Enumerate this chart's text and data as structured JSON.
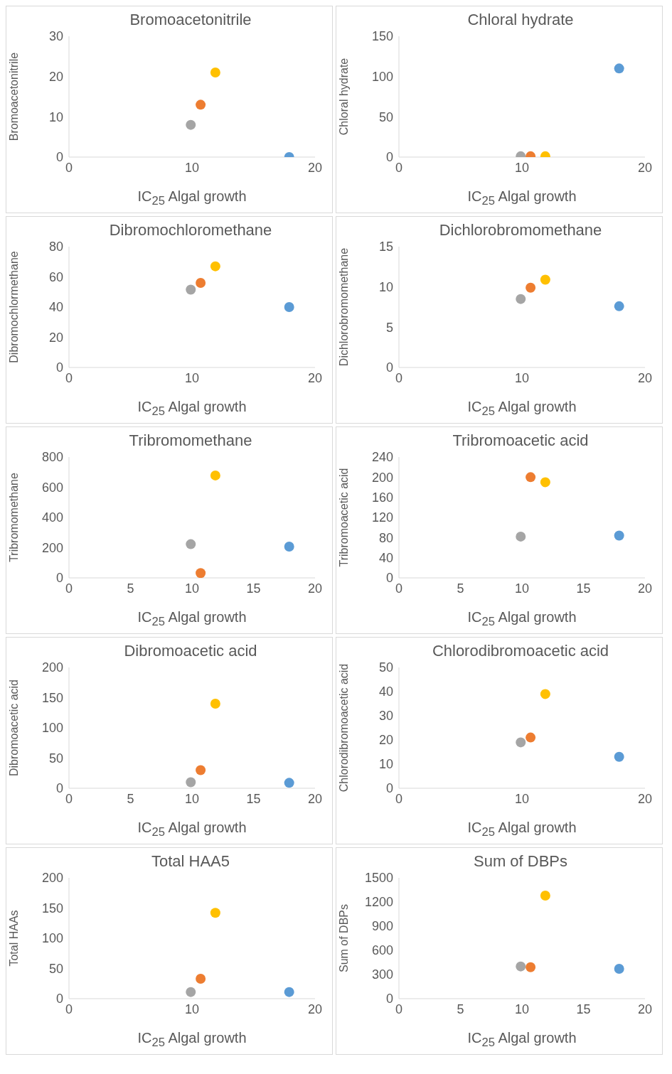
{
  "chart_data": [
    {
      "type": "scatter",
      "title": "Bromoacetonitrile",
      "xlabel": "IC$_{25}$ Algal growth",
      "ylabel": "Bromoacetonitrile",
      "x": [
        9.9,
        10.7,
        11.9,
        17.9
      ],
      "values": [
        8,
        13,
        21,
        0
      ],
      "colors": [
        "#a5a5a5",
        "#ed7d31",
        "#ffc000",
        "#5b9bd5"
      ],
      "xlim": [
        0,
        20
      ],
      "xticks": [
        0,
        10,
        20
      ],
      "ylim": [
        0,
        30
      ],
      "yticks": [
        0,
        10,
        20,
        30
      ],
      "marker": "circle"
    },
    {
      "type": "scatter",
      "title": "Chloral hydrate",
      "xlabel": "IC$_{25}$ Algal growth",
      "ylabel": "Chloral hydrate",
      "x": [
        9.9,
        10.7,
        11.9,
        17.9
      ],
      "values": [
        1,
        1,
        1,
        110
      ],
      "colors": [
        "#a5a5a5",
        "#ed7d31",
        "#ffc000",
        "#5b9bd5"
      ],
      "xlim": [
        0,
        20
      ],
      "xticks": [
        0,
        10,
        20
      ],
      "ylim": [
        0,
        150
      ],
      "yticks": [
        0,
        50,
        100,
        150
      ],
      "marker": "circle"
    },
    {
      "type": "scatter",
      "title": "Dibromochloromethane",
      "xlabel": "IC$_{25}$ Algal growth",
      "ylabel": "Dibromochlormethane",
      "x": [
        9.9,
        10.7,
        11.9,
        17.9
      ],
      "values": [
        51.5,
        56,
        67,
        40
      ],
      "colors": [
        "#a5a5a5",
        "#ed7d31",
        "#ffc000",
        "#5b9bd5"
      ],
      "xlim": [
        0,
        20
      ],
      "xticks": [
        0,
        10,
        20
      ],
      "ylim": [
        0,
        80
      ],
      "yticks": [
        0,
        20,
        40,
        60,
        80
      ],
      "marker": "circle"
    },
    {
      "type": "scatter",
      "title": "Dichlorobromomethane",
      "xlabel": "IC$_{25}$ Algal growth",
      "ylabel": "Dichlorobromomethane",
      "x": [
        9.9,
        10.7,
        11.9,
        17.9
      ],
      "values": [
        8.5,
        9.9,
        10.9,
        7.6
      ],
      "colors": [
        "#a5a5a5",
        "#ed7d31",
        "#ffc000",
        "#5b9bd5"
      ],
      "xlim": [
        0,
        20
      ],
      "xticks": [
        0,
        10,
        20
      ],
      "ylim": [
        0,
        15
      ],
      "yticks": [
        0,
        5,
        10,
        15
      ],
      "marker": "circle"
    },
    {
      "type": "scatter",
      "title": "Tribromomethane",
      "xlabel": "IC$_{25}$ Algal growth",
      "ylabel": "Tribromomethane",
      "x": [
        9.9,
        10.7,
        11.9,
        17.9
      ],
      "values": [
        223,
        32,
        678,
        207
      ],
      "colors": [
        "#a5a5a5",
        "#ed7d31",
        "#ffc000",
        "#5b9bd5"
      ],
      "xlim": [
        0,
        20
      ],
      "xticks": [
        0,
        5,
        10,
        15,
        20
      ],
      "ylim": [
        0,
        800
      ],
      "yticks": [
        0,
        200,
        400,
        600,
        800
      ],
      "marker": "circle"
    },
    {
      "type": "scatter",
      "title": "Tribromoacetic acid",
      "xlabel": "IC$_{25}$ Algal growth",
      "ylabel": "Tribromoacetic acid",
      "x": [
        9.9,
        10.7,
        11.9,
        17.9
      ],
      "values": [
        82,
        200,
        190,
        84
      ],
      "colors": [
        "#a5a5a5",
        "#ed7d31",
        "#ffc000",
        "#5b9bd5"
      ],
      "xlim": [
        0,
        20
      ],
      "xticks": [
        0,
        5,
        10,
        15,
        20
      ],
      "ylim": [
        0,
        240
      ],
      "yticks": [
        0,
        40,
        80,
        120,
        160,
        200,
        240
      ],
      "marker": "circle"
    },
    {
      "type": "scatter",
      "title": "Dibromoacetic acid",
      "xlabel": "IC$_{25}$ Algal growth",
      "ylabel": "Dibromoacetic acid",
      "x": [
        9.9,
        10.7,
        11.9,
        17.9
      ],
      "values": [
        10,
        30,
        140,
        9
      ],
      "colors": [
        "#a5a5a5",
        "#ed7d31",
        "#ffc000",
        "#5b9bd5"
      ],
      "xlim": [
        0,
        20
      ],
      "xticks": [
        0,
        5,
        10,
        15,
        20
      ],
      "ylim": [
        0,
        200
      ],
      "yticks": [
        0,
        50,
        100,
        150,
        200
      ],
      "marker": "circle"
    },
    {
      "type": "scatter",
      "title": "Chlorodibromoacetic acid",
      "xlabel": "IC$_{25}$ Algal growth",
      "ylabel": "Chlorodibromoacetic acid",
      "x": [
        9.9,
        10.7,
        11.9,
        17.9
      ],
      "values": [
        19,
        21,
        39,
        13
      ],
      "colors": [
        "#a5a5a5",
        "#ed7d31",
        "#ffc000",
        "#5b9bd5"
      ],
      "xlim": [
        0,
        20
      ],
      "xticks": [
        0,
        10,
        20
      ],
      "ylim": [
        0,
        50
      ],
      "yticks": [
        0,
        10,
        20,
        30,
        40,
        50
      ],
      "marker": "circle"
    },
    {
      "type": "scatter",
      "title": "Total HAA5",
      "xlabel": "IC$_{25}$ Algal growth",
      "ylabel": "Total HAAs",
      "x": [
        9.9,
        10.7,
        11.9,
        17.9
      ],
      "values": [
        11,
        33,
        142,
        11
      ],
      "colors": [
        "#a5a5a5",
        "#ed7d31",
        "#ffc000",
        "#5b9bd5"
      ],
      "xlim": [
        0,
        20
      ],
      "xticks": [
        0,
        10,
        20
      ],
      "ylim": [
        0,
        200
      ],
      "yticks": [
        0,
        50,
        100,
        150,
        200
      ],
      "marker": "circle"
    },
    {
      "type": "scatter",
      "title": "Sum of DBPs",
      "xlabel": "IC$_{25}$ Algal growth",
      "ylabel": "Sum of DBPs",
      "x": [
        9.9,
        10.7,
        11.9,
        17.9
      ],
      "values": [
        400,
        390,
        1280,
        370
      ],
      "colors": [
        "#a5a5a5",
        "#ed7d31",
        "#ffc000",
        "#5b9bd5"
      ],
      "xlim": [
        0,
        20
      ],
      "xticks": [
        0,
        5,
        10,
        15,
        20
      ],
      "ylim": [
        0,
        1500
      ],
      "yticks": [
        0,
        300,
        600,
        900,
        1200,
        1500
      ],
      "marker": "circle"
    }
  ]
}
